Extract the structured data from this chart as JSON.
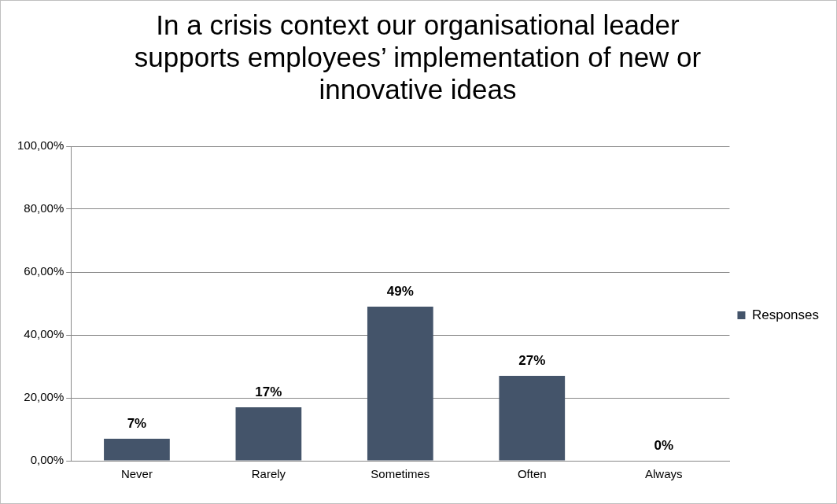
{
  "chart_data": {
    "type": "bar",
    "title": "In a crisis context our organisational leader supports employees’ implementation of new or innovative ideas",
    "categories": [
      "Never",
      "Rarely",
      "Sometimes",
      "Often",
      "Always"
    ],
    "series": [
      {
        "name": "Responses",
        "color": "#44546a",
        "values": [
          7,
          17,
          49,
          27,
          0
        ],
        "value_labels": [
          "7%",
          "17%",
          "49%",
          "27%",
          "0%"
        ]
      }
    ],
    "ylim": [
      0,
      100
    ],
    "yticks": [
      {
        "value": 0,
        "label": "0,00%"
      },
      {
        "value": 20,
        "label": "20,00%"
      },
      {
        "value": 40,
        "label": "40,00%"
      },
      {
        "value": 60,
        "label": "60,00%"
      },
      {
        "value": 80,
        "label": "80,00%"
      },
      {
        "value": 100,
        "label": "100,00%"
      }
    ],
    "grid": "y",
    "legend": "right"
  }
}
